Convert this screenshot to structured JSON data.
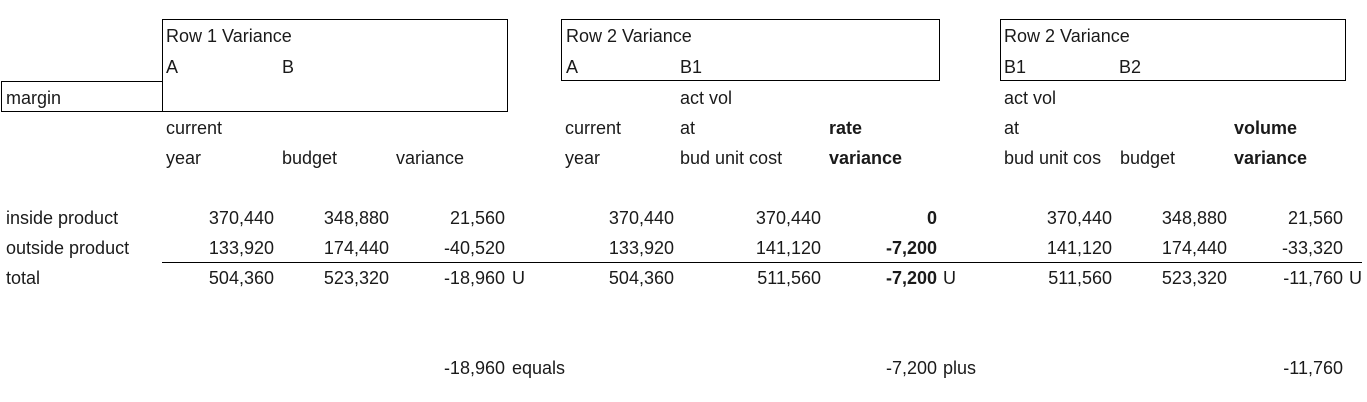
{
  "label_margin": "margin",
  "box1": {
    "title": "Row 1 Variance",
    "col_a": "A",
    "col_b": "B"
  },
  "box2": {
    "title": "Row 2 Variance",
    "col_a": "A",
    "col_b": "B1"
  },
  "box3": {
    "title": "Row 2 Variance",
    "col_a": "B1",
    "col_b": "B2"
  },
  "headers": {
    "g1": {
      "c1_l1": "current",
      "c1_l2": "year",
      "c2": "budget",
      "c3": "variance"
    },
    "g2": {
      "c1_l1": "current",
      "c1_l2": "year",
      "c2_l1": "act vol",
      "c2_l2": "at",
      "c2_l3": "bud unit cost",
      "c3_l1": "rate",
      "c3_l2": "variance"
    },
    "g3": {
      "c1_l1": "act vol",
      "c1_l2": "at",
      "c1_l3": "bud unit cos",
      "c2": "budget",
      "c3_l1": "volume",
      "c3_l2": "variance"
    }
  },
  "rows": [
    {
      "label": "inside product",
      "g1": [
        "370,440",
        "348,880",
        "21,560"
      ],
      "g2": [
        "370,440",
        "370,440",
        "0"
      ],
      "g3": [
        "370,440",
        "348,880",
        "21,560"
      ]
    },
    {
      "label": "outside product",
      "g1": [
        "133,920",
        "174,440",
        "-40,520"
      ],
      "g2": [
        "133,920",
        "141,120",
        "-7,200"
      ],
      "g3": [
        "141,120",
        "174,440",
        "-33,320"
      ]
    },
    {
      "label": "total",
      "g1": [
        "504,360",
        "523,320",
        "-18,960"
      ],
      "g2": [
        "504,360",
        "511,560",
        "-7,200"
      ],
      "g3": [
        "511,560",
        "523,320",
        "-11,760"
      ],
      "flags": [
        "U",
        "U",
        "U"
      ]
    }
  ],
  "summary": {
    "v1": "-18,960",
    "w1": "equals",
    "v2": "-7,200",
    "w2": "plus",
    "v3": "-11,760"
  }
}
